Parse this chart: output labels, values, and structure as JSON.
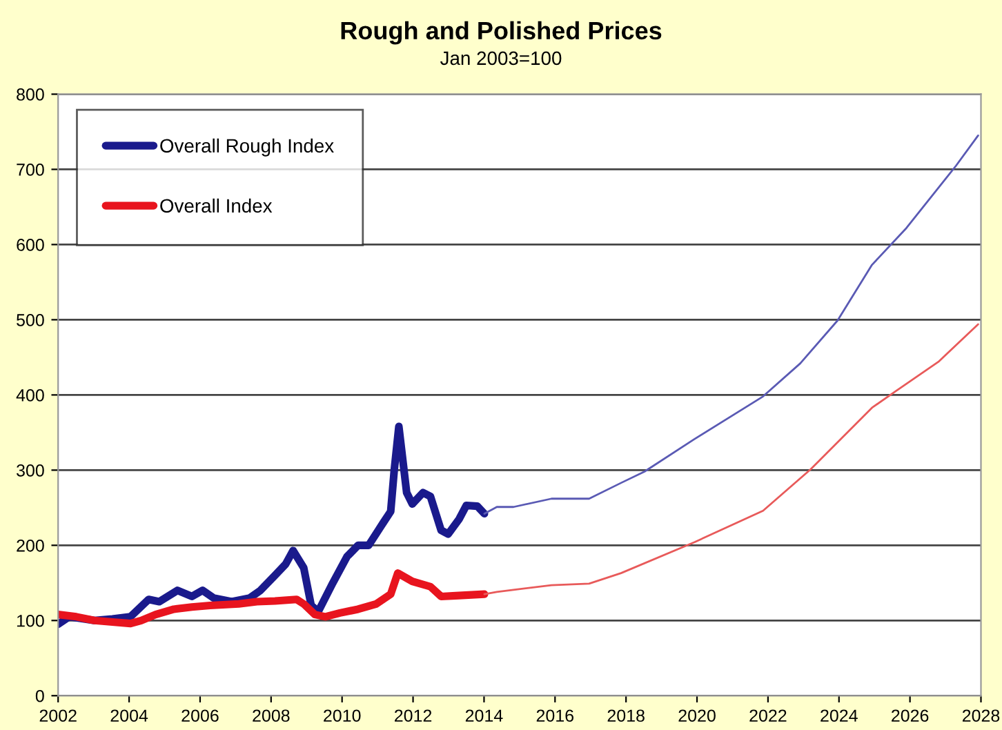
{
  "chart_data": {
    "type": "line",
    "title": "Rough and Polished Prices",
    "subtitle": "Jan 2003=100",
    "xlim": [
      2002,
      2028
    ],
    "xticks": [
      2002,
      2004,
      2006,
      2008,
      2010,
      2012,
      2014,
      2016,
      2018,
      2020,
      2022,
      2024,
      2026,
      2028
    ],
    "ylim": [
      0,
      800
    ],
    "yticks": [
      0,
      100,
      200,
      300,
      400,
      500,
      600,
      700,
      800
    ],
    "grid": "y",
    "legend": "top left",
    "marker": "none",
    "line_style": "solid",
    "series": [
      {
        "name": "Overall Rough Index",
        "color": "#1a1a8c",
        "x": [
          2002.0,
          2002.31,
          2003.02,
          2003.53,
          2004.04,
          2004.55,
          2004.85,
          2005.36,
          2005.77,
          2006.07,
          2006.38,
          2006.89,
          2007.4,
          2007.7,
          2008.11,
          2008.41,
          2008.62,
          2008.92,
          2009.13,
          2009.33,
          2009.74,
          2010.14,
          2010.45,
          2010.75,
          2011.16,
          2011.37,
          2011.47,
          2011.6,
          2011.82,
          2011.98,
          2012.28,
          2012.49,
          2012.79,
          2012.99,
          2013.3,
          2013.5,
          2013.81,
          2014.01
        ],
        "values": [
          95,
          105,
          100,
          102,
          105,
          128,
          125,
          140,
          132,
          140,
          130,
          125,
          130,
          140,
          160,
          175,
          193,
          170,
          120,
          112,
          150,
          185,
          200,
          200,
          230,
          245,
          300,
          358,
          270,
          255,
          270,
          265,
          220,
          215,
          235,
          253,
          252,
          242
        ]
      },
      {
        "color": "#5a5ab4",
        "x": [
          2014.01,
          2014.36,
          2014.83,
          2015.9,
          2016.96,
          2017.86,
          2018.52,
          2019.92,
          2021.86,
          2022.91,
          2023.96,
          2024.93,
          2025.9,
          2027.3,
          2027.92
        ],
        "values": [
          242,
          251,
          251,
          262,
          262,
          283,
          298,
          341,
          398,
          442,
          499,
          573,
          622,
          705,
          745
        ]
      },
      {
        "name": "Overall Index",
        "color": "#e8141e",
        "x": [
          2002.0,
          2002.51,
          2003.02,
          2003.53,
          2004.04,
          2004.34,
          2004.75,
          2005.26,
          2005.77,
          2006.28,
          2007.09,
          2007.6,
          2008.11,
          2008.72,
          2008.92,
          2009.23,
          2009.53,
          2009.94,
          2010.45,
          2010.96,
          2011.37,
          2011.57,
          2011.98,
          2012.49,
          2012.79,
          2013.2,
          2014.01
        ],
        "values": [
          108,
          105,
          100,
          98,
          96,
          100,
          108,
          115,
          118,
          120,
          122,
          125,
          126,
          128,
          122,
          108,
          105,
          110,
          115,
          122,
          135,
          163,
          152,
          145,
          132,
          133,
          135
        ]
      },
      {
        "color": "#e85a5a",
        "x": [
          2014.01,
          2014.36,
          2015.9,
          2016.96,
          2017.86,
          2019.92,
          2021.86,
          2023.2,
          2024.93,
          2025.6,
          2026.8,
          2027.92
        ],
        "values": [
          135,
          138,
          147,
          149,
          163,
          204,
          246,
          301,
          383,
          405,
          444,
          494
        ]
      }
    ]
  }
}
